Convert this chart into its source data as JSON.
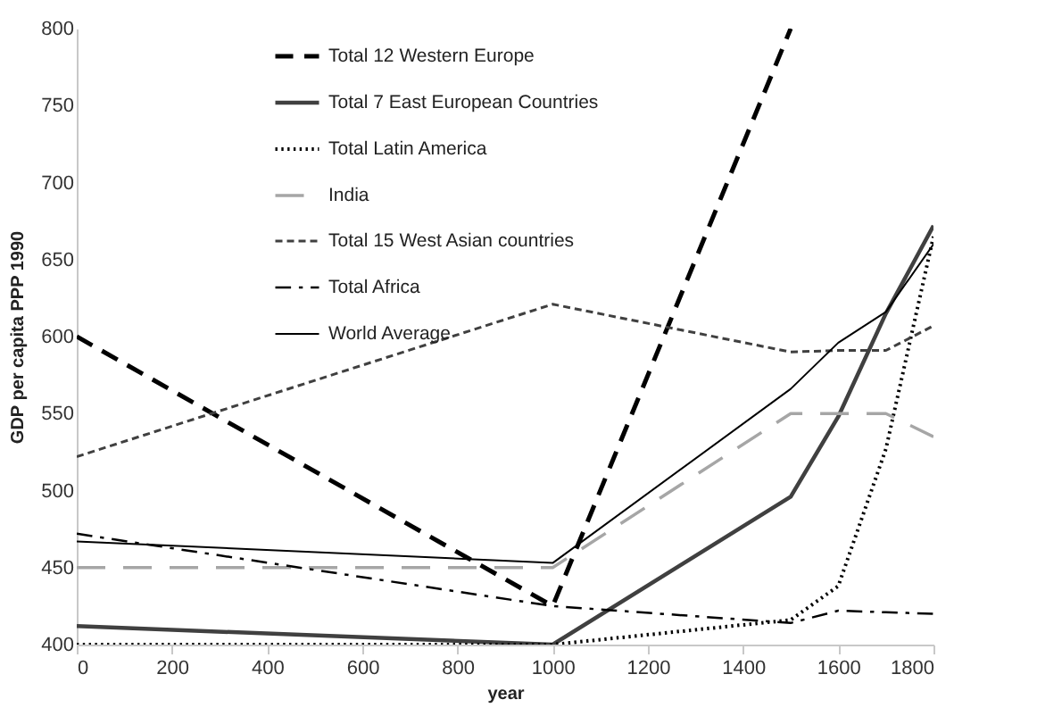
{
  "chart_data": {
    "type": "line",
    "xlabel": "year",
    "ylabel": "GDP per capita PPP 1990",
    "x": [
      0,
      1000,
      1500,
      1600,
      1700,
      1800
    ],
    "xlim": [
      0,
      1800
    ],
    "xticks": [
      0,
      200,
      400,
      600,
      800,
      1000,
      1200,
      1400,
      1600,
      1800
    ],
    "ylim": [
      400,
      800
    ],
    "yticks": [
      400,
      450,
      500,
      550,
      600,
      650,
      700,
      750,
      800
    ],
    "grid": false,
    "legend": "top left",
    "marker": "none",
    "series": [
      {
        "name": "Total 12 Western Europe",
        "color": "#000000",
        "line_style": "dashed",
        "values": [
          600,
          425,
          800,
          null,
          null,
          null
        ]
      },
      {
        "name": "Total 7 East European Countries",
        "color": "#404040",
        "line_style": "solid",
        "values": [
          412,
          400,
          496,
          548,
          615,
          672
        ]
      },
      {
        "name": "Total Latin America",
        "color": "#000000",
        "line_style": "dotted",
        "values": [
          400,
          400,
          416,
          438,
          527,
          665
        ]
      },
      {
        "name": "India",
        "color": "#a6a6a6",
        "line_style": "dashed",
        "values": [
          450,
          450,
          550,
          550,
          550,
          535
        ]
      },
      {
        "name": "Total 15 West Asian countries",
        "color": "#404040",
        "line_style": "dashed",
        "values": [
          522,
          621,
          590,
          591,
          591,
          607
        ]
      },
      {
        "name": "Total Africa",
        "color": "#000000",
        "line_style": "dashdot",
        "values": [
          472,
          425,
          414,
          422,
          421,
          420
        ]
      },
      {
        "name": "World Average",
        "color": "#000000",
        "line_style": "solid",
        "values": [
          467,
          453,
          566,
          596,
          616,
          660
        ]
      }
    ]
  }
}
